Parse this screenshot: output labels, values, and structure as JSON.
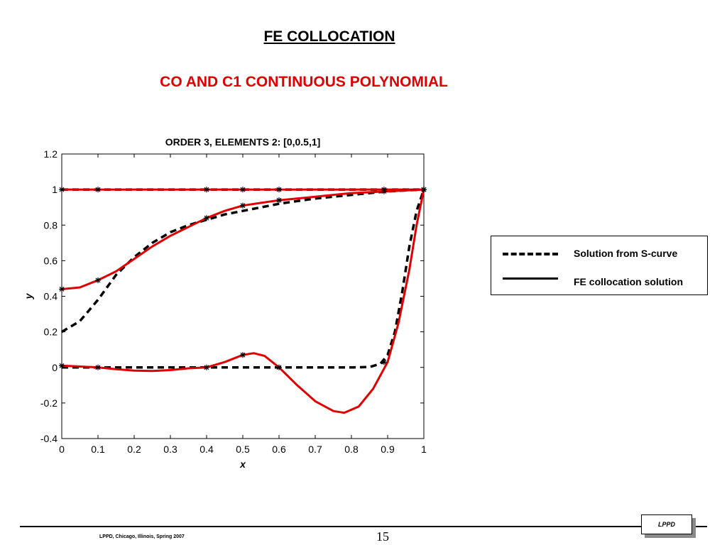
{
  "slide": {
    "title": "FE COLLOCATION",
    "subtitle": "CO AND C1 CONTINUOUS POLYNOMIAL",
    "footer_left": "LPPD, Chicago, Illinois, Spring 2007",
    "page_number": "15",
    "badge": "LPPD",
    "accent_color": "#e00000"
  },
  "legend": {
    "items": [
      {
        "label": "Solution from S-curve",
        "style": "dashed",
        "color": "#000000"
      },
      {
        "label": "FE collocation solution",
        "style": "solid",
        "color": "#000000"
      }
    ]
  },
  "chart_data": {
    "type": "line",
    "title": "ORDER 3, ELEMENTS 2: [0,0.5,1]",
    "xlabel": "x",
    "ylabel": "y",
    "xlim": [
      0,
      1
    ],
    "ylim": [
      -0.4,
      1.2
    ],
    "xticks": [
      "0",
      "0.1",
      "0.2",
      "0.3",
      "0.4",
      "0.5",
      "0.6",
      "0.7",
      "0.8",
      "0.9",
      "1"
    ],
    "yticks": [
      "-0.4",
      "-0.2",
      "0",
      "0.2",
      "0.4",
      "0.6",
      "0.8",
      "1",
      "1.2"
    ],
    "grid": false,
    "series": [
      {
        "style": "dashed",
        "color": "#000000",
        "x": [
          0,
          0.1,
          1
        ],
        "y": [
          1,
          1,
          1
        ]
      },
      {
        "style": "solid",
        "color": "#e00000",
        "x": [
          0,
          0.1,
          0.4,
          0.5,
          0.6,
          0.9,
          1
        ],
        "y": [
          1,
          1,
          1,
          1,
          1,
          1,
          1
        ]
      },
      {
        "style": "dashed",
        "color": "#000000",
        "x": [
          0,
          0.05,
          0.1,
          0.15,
          0.2,
          0.25,
          0.3,
          0.35,
          0.4,
          0.45,
          0.5,
          0.55,
          0.6,
          0.65,
          0.7,
          0.75,
          0.8,
          0.85,
          0.9,
          0.95,
          1
        ],
        "y": [
          0.2,
          0.26,
          0.38,
          0.52,
          0.62,
          0.7,
          0.76,
          0.8,
          0.83,
          0.86,
          0.88,
          0.9,
          0.92,
          0.935,
          0.95,
          0.96,
          0.97,
          0.98,
          0.99,
          0.995,
          1
        ]
      },
      {
        "style": "solid",
        "color": "#e00000",
        "x": [
          0,
          0.05,
          0.1,
          0.15,
          0.2,
          0.25,
          0.3,
          0.35,
          0.4,
          0.45,
          0.5,
          0.55,
          0.6,
          0.65,
          0.7,
          0.75,
          0.8,
          0.85,
          0.9,
          0.95,
          1
        ],
        "y": [
          0.44,
          0.45,
          0.49,
          0.54,
          0.61,
          0.68,
          0.74,
          0.79,
          0.84,
          0.88,
          0.91,
          0.925,
          0.94,
          0.95,
          0.96,
          0.97,
          0.98,
          0.985,
          0.99,
          0.995,
          1
        ]
      },
      {
        "style": "dashed",
        "color": "#000000",
        "x": [
          0,
          0.1,
          0.2,
          0.3,
          0.4,
          0.5,
          0.6,
          0.7,
          0.8,
          0.85,
          0.88,
          0.9,
          0.92,
          0.94,
          0.96,
          0.98,
          1
        ],
        "y": [
          0,
          0,
          0,
          0,
          0,
          0,
          0,
          0,
          0,
          0.002,
          0.02,
          0.07,
          0.2,
          0.42,
          0.68,
          0.88,
          1
        ]
      },
      {
        "style": "solid",
        "color": "#e00000",
        "x": [
          0,
          0.05,
          0.1,
          0.15,
          0.2,
          0.25,
          0.3,
          0.35,
          0.4,
          0.45,
          0.5,
          0.53,
          0.56,
          0.6,
          0.65,
          0.7,
          0.75,
          0.78,
          0.82,
          0.86,
          0.9,
          0.93,
          0.96,
          0.98,
          1
        ],
        "y": [
          0.01,
          0.005,
          0,
          -0.01,
          -0.018,
          -0.02,
          -0.015,
          -0.005,
          0,
          0.03,
          0.07,
          0.08,
          0.065,
          0,
          -0.1,
          -0.19,
          -0.245,
          -0.255,
          -0.22,
          -0.12,
          0.03,
          0.25,
          0.55,
          0.8,
          1
        ]
      }
    ],
    "markers": {
      "symbol": "*",
      "x": [
        0,
        0.1,
        0.4,
        0.5,
        0.6,
        0.89,
        1,
        0,
        0.1,
        0.4,
        0.5,
        0.6,
        0.89,
        1,
        0,
        0.1,
        0.4,
        0.5,
        0.6,
        0.89,
        1
      ],
      "y": [
        1,
        1,
        1,
        1,
        1,
        1,
        1,
        0.44,
        0.49,
        0.84,
        0.91,
        0.94,
        0.99,
        1,
        0.01,
        0,
        0,
        0.07,
        0,
        0.03,
        1
      ]
    }
  }
}
